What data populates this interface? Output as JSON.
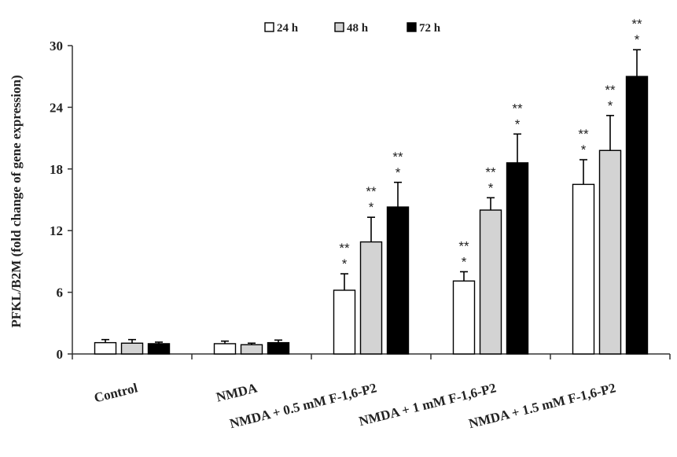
{
  "chart_data": {
    "type": "bar",
    "ylabel": "PFKL/B2M (fold change of gene expression)",
    "xlabel": "",
    "ylim": [
      0,
      30
    ],
    "yticks": [
      0,
      6,
      12,
      18,
      24,
      30
    ],
    "categories": [
      "Control",
      "NMDA",
      "NMDA + 0.5 mM F-1,6-P2",
      "NMDA + 1 mM F-1,6-P2",
      "NMDA + 1.5 mM F-1,6-P2"
    ],
    "legend_position": "top-center",
    "grid": false,
    "series": [
      {
        "name": "24 h",
        "color": "#ffffff",
        "values": [
          1.1,
          1.0,
          6.2,
          7.1,
          16.5
        ],
        "errors": [
          0.3,
          0.25,
          1.6,
          0.9,
          2.4
        ],
        "annotations": [
          "",
          "",
          "**\n*",
          "**\n*",
          "**\n*"
        ]
      },
      {
        "name": "48 h",
        "color": "#d3d3d3",
        "values": [
          1.05,
          0.9,
          10.9,
          14.0,
          19.8
        ],
        "errors": [
          0.35,
          0.15,
          2.4,
          1.2,
          3.4
        ],
        "annotations": [
          "",
          "",
          "**\n*",
          "**\n*",
          "**\n*"
        ]
      },
      {
        "name": "72 h",
        "color": "#000000",
        "values": [
          1.0,
          1.1,
          14.3,
          18.6,
          27.0
        ],
        "errors": [
          0.15,
          0.25,
          2.4,
          2.8,
          2.6
        ],
        "annotations": [
          "",
          "",
          "**\n*",
          "**\n*",
          "**\n*"
        ]
      }
    ]
  }
}
